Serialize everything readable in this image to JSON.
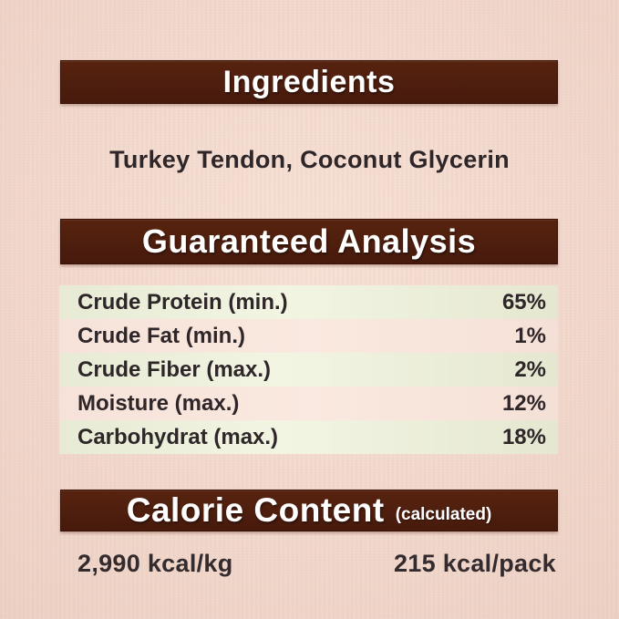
{
  "colors": {
    "background": "#f1d7cb",
    "bar_brown": "#4e1e0e",
    "row_green": "#edf0dc",
    "row_pink": "#f8e6dd",
    "text_dark": "#2e2628",
    "text_light": "#ffffff"
  },
  "sections": {
    "ingredients": {
      "title": "Ingredients",
      "value": "Turkey Tendon, Coconut Glycerin"
    },
    "guaranteed_analysis": {
      "title": "Guaranteed Analysis",
      "rows": [
        {
          "label": "Crude Protein (min.)",
          "value": "65%"
        },
        {
          "label": "Crude Fat (min.)",
          "value": "1%"
        },
        {
          "label": "Crude Fiber (max.)",
          "value": "2%"
        },
        {
          "label": "Moisture (max.)",
          "value": "12%"
        },
        {
          "label": "Carbohydrat (max.)",
          "value": "18%"
        }
      ]
    },
    "calorie_content": {
      "title": "Calorie Content",
      "subtitle": "(calculated)",
      "per_kg": "2,990 kcal/kg",
      "per_pack": "215 kcal/pack"
    }
  }
}
